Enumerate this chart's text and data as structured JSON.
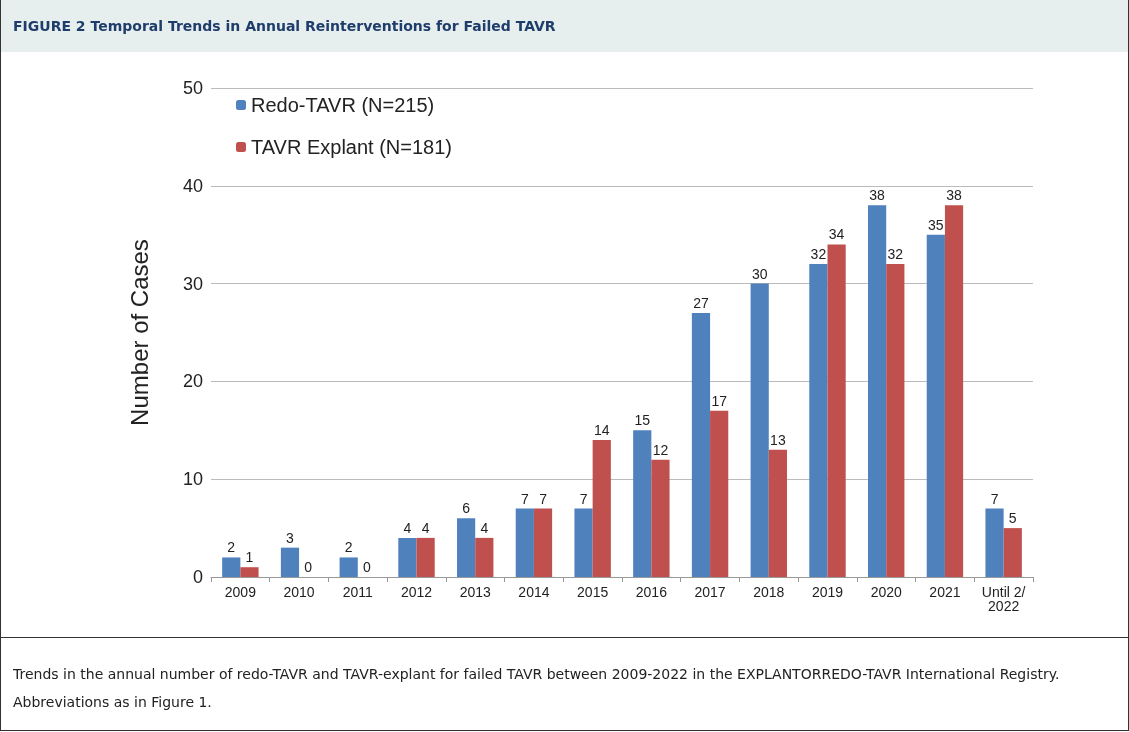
{
  "chart_data": {
    "type": "bar",
    "title": "FIGURE 2 Temporal Trends in Annual Reinterventions for Failed TAVR",
    "ylabel": "Number of Cases",
    "categories": [
      "2009",
      "2010",
      "2011",
      "2012",
      "2013",
      "2014",
      "2015",
      "2016",
      "2017",
      "2018",
      "2019",
      "2020",
      "2021",
      "Until 2/2022"
    ],
    "series": [
      {
        "name": "Redo-TAVR (N=215)",
        "color": "#4f81bd",
        "values": [
          2,
          3,
          2,
          4,
          6,
          7,
          7,
          15,
          27,
          30,
          32,
          38,
          35,
          7
        ]
      },
      {
        "name": "TAVR Explant (N=181)",
        "color": "#c0504d",
        "values": [
          1,
          0,
          0,
          4,
          4,
          7,
          14,
          12,
          17,
          13,
          34,
          32,
          38,
          5
        ]
      }
    ],
    "ylim": [
      0,
      50
    ],
    "yticks": [
      0,
      10,
      20,
      30,
      40,
      50
    ],
    "grid": "y",
    "legend": "top left",
    "data_labels": true,
    "annotations": [
      "Trends in the annual number of redo-TAVR and TAVR-explant for failed TAVR between 2009-2022 in the EXPLANTORREDO-TAVR International Registry. Abbreviations as in Figure 1."
    ]
  }
}
